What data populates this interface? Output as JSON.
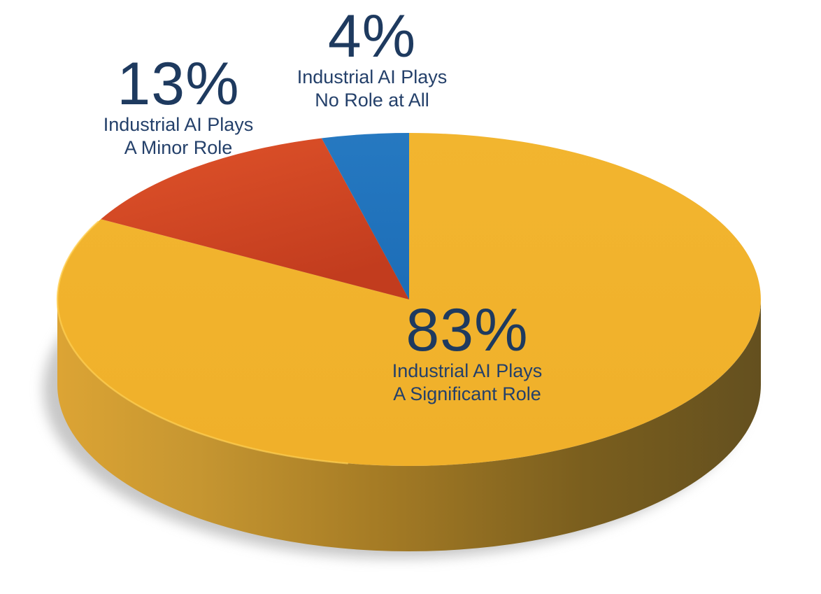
{
  "page": {
    "background": "#FFFFFF",
    "text_color": "#1E3A5F"
  },
  "chart_data": {
    "type": "pie",
    "style": "3d",
    "title": "",
    "legend": "none",
    "start_angle_deg": 0,
    "direction": "clockwise",
    "unit": "%",
    "slices": [
      {
        "key": "significant",
        "value": 83,
        "pct_label": "83%",
        "label_line1": "Industrial AI Plays",
        "label_line2": "A Significant Role",
        "color": "#F1B32C"
      },
      {
        "key": "minor",
        "value": 13,
        "pct_label": "13%",
        "label_line1": "Industrial AI Plays",
        "label_line2": "A Minor Role",
        "color": "#D84A25"
      },
      {
        "key": "none",
        "value": 4,
        "pct_label": "4%",
        "label_line1": "Industrial AI Plays",
        "label_line2": "No Role at All",
        "color": "#2176BE"
      }
    ],
    "side_shadow_color": "#8F8F8F",
    "side_dark_color": "#64501F",
    "side_light_color": "#DCA434"
  }
}
